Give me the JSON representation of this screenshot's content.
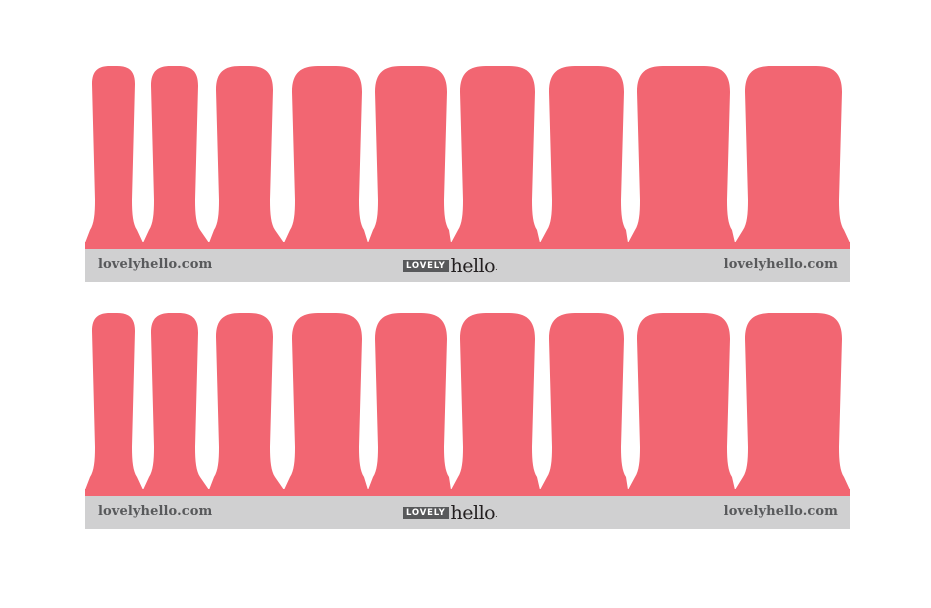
{
  "colors": {
    "nail": "#f26672",
    "band": "#d0d0d1",
    "text": "#58595b"
  },
  "sheets": [
    {
      "site_left": "lovelyhello.com",
      "site_right": "lovelyhello.com",
      "logo": {
        "lovely": "LOVELY",
        "hello": "hello",
        "dot": "."
      }
    },
    {
      "site_left": "lovelyhello.com",
      "site_right": "lovelyhello.com",
      "logo": {
        "lovely": "LOVELY",
        "hello": "hello",
        "dot": "."
      }
    }
  ]
}
